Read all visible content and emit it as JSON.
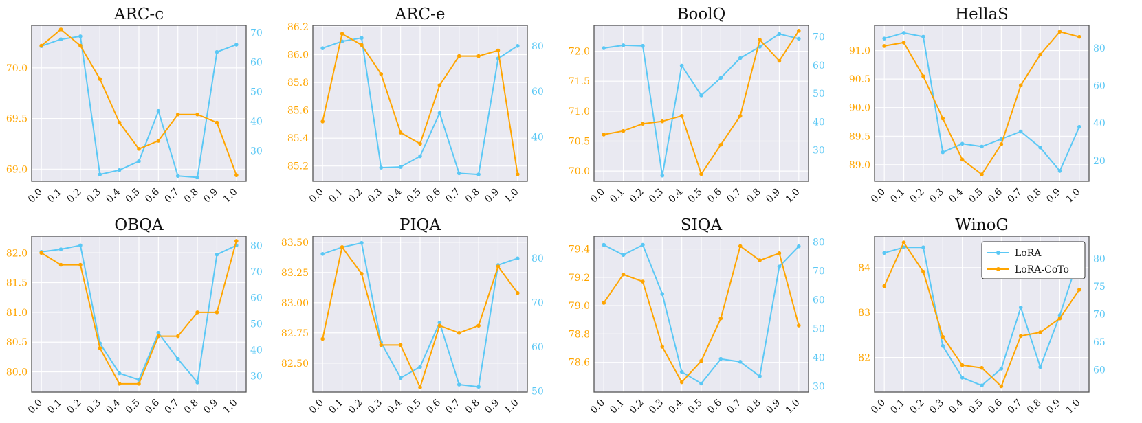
{
  "colors": {
    "lora": "#5BC8F5",
    "coto": "#FFA500",
    "panel_bg": "#E9E9F1",
    "grid": "#FFFFFF",
    "frame": "#555555",
    "text": "#111111"
  },
  "x_ticks": [
    "0.0",
    "0.1",
    "0.2",
    "0.3",
    "0.4",
    "0.5",
    "0.6",
    "0.7",
    "0.8",
    "0.9",
    "1.0"
  ],
  "legend": [
    "LoRA",
    "LoRA-CoTo"
  ],
  "chart_data": [
    {
      "type": "line",
      "title": "ARC-c",
      "x": [
        0.0,
        0.1,
        0.2,
        0.3,
        0.4,
        0.5,
        0.6,
        0.7,
        0.8,
        0.9,
        1.0
      ],
      "left_axis": {
        "series": "LoRA-CoTo",
        "ylim": [
          68.88,
          70.42
        ],
        "ticks": [
          69.0,
          69.5,
          70.0
        ],
        "tick_labels": [
          "69.0",
          "69.5",
          "70.0"
        ]
      },
      "right_axis": {
        "series": "LoRA",
        "ylim": [
          19.7,
          72.5
        ],
        "ticks": [
          30,
          40,
          50,
          60,
          70
        ],
        "tick_labels": [
          "30",
          "40",
          "50",
          "60",
          "70"
        ]
      },
      "series": [
        {
          "name": "LoRA",
          "axis": "right",
          "values": [
            65.5,
            67.8,
            68.8,
            22.0,
            23.5,
            26.5,
            43.5,
            21.5,
            21.0,
            63.5,
            66.0
          ]
        },
        {
          "name": "LoRA-CoTo",
          "axis": "left",
          "values": [
            70.22,
            70.38,
            70.22,
            69.89,
            69.46,
            69.2,
            69.28,
            69.54,
            69.54,
            69.46,
            68.94
          ]
        }
      ]
    },
    {
      "type": "line",
      "title": "ARC-e",
      "x": [
        0.0,
        0.1,
        0.2,
        0.3,
        0.4,
        0.5,
        0.6,
        0.7,
        0.8,
        0.9,
        1.0
      ],
      "left_axis": {
        "series": "LoRA-CoTo",
        "ylim": [
          85.09,
          86.21
        ],
        "ticks": [
          85.2,
          85.4,
          85.6,
          85.8,
          86.0,
          86.2
        ],
        "tick_labels": [
          "85.2",
          "85.4",
          "85.6",
          "85.8",
          "86.0",
          "86.2"
        ]
      },
      "right_axis": {
        "series": "LoRA",
        "ylim": [
          20.5,
          89.0
        ],
        "ticks": [
          40,
          60,
          80
        ],
        "tick_labels": [
          "40",
          "60",
          "80"
        ]
      },
      "series": [
        {
          "name": "LoRA",
          "axis": "right",
          "values": [
            79.0,
            82.0,
            83.5,
            26.5,
            26.8,
            31.5,
            50.5,
            24.0,
            23.5,
            74.5,
            80.0
          ]
        },
        {
          "name": "LoRA-CoTo",
          "axis": "left",
          "values": [
            85.52,
            86.15,
            86.07,
            85.86,
            85.44,
            85.36,
            85.78,
            85.99,
            85.99,
            86.03,
            85.14
          ]
        }
      ]
    },
    {
      "type": "line",
      "title": "BoolQ",
      "x": [
        0.0,
        0.1,
        0.2,
        0.3,
        0.4,
        0.5,
        0.6,
        0.7,
        0.8,
        0.9,
        1.0
      ],
      "left_axis": {
        "series": "LoRA-CoTo",
        "ylim": [
          69.83,
          72.43
        ],
        "ticks": [
          70.0,
          70.5,
          71.0,
          71.5,
          72.0
        ],
        "tick_labels": [
          "70.0",
          "70.5",
          "71.0",
          "71.5",
          "72.0"
        ]
      },
      "right_axis": {
        "series": "LoRA",
        "ylim": [
          19.0,
          74.0
        ],
        "ticks": [
          30,
          40,
          50,
          60,
          70
        ],
        "tick_labels": [
          "30",
          "40",
          "50",
          "60",
          "70"
        ]
      },
      "series": [
        {
          "name": "LoRA",
          "axis": "right",
          "values": [
            66.0,
            67.0,
            66.8,
            21.0,
            59.8,
            49.3,
            55.5,
            62.5,
            66.5,
            71.0,
            69.3
          ]
        },
        {
          "name": "LoRA-CoTo",
          "axis": "left",
          "values": [
            70.61,
            70.67,
            70.79,
            70.83,
            70.92,
            69.95,
            70.44,
            70.92,
            72.19,
            71.84,
            72.34
          ]
        }
      ]
    },
    {
      "type": "line",
      "title": "HellaS",
      "x": [
        0.0,
        0.1,
        0.2,
        0.3,
        0.4,
        0.5,
        0.6,
        0.7,
        0.8,
        0.9,
        1.0
      ],
      "left_axis": {
        "series": "LoRA-CoTo",
        "ylim": [
          88.71,
          91.44
        ],
        "ticks": [
          89.0,
          89.5,
          90.0,
          90.5,
          91.0
        ],
        "tick_labels": [
          "89.0",
          "89.5",
          "90.0",
          "90.5",
          "91.0"
        ]
      },
      "right_axis": {
        "series": "LoRA",
        "ylim": [
          9.0,
          92.0
        ],
        "ticks": [
          20,
          40,
          60,
          80
        ],
        "tick_labels": [
          "20",
          "40",
          "60",
          "80"
        ]
      },
      "series": [
        {
          "name": "LoRA",
          "axis": "right",
          "values": [
            85.0,
            88.0,
            86.0,
            24.5,
            29.0,
            27.5,
            31.5,
            35.5,
            27.0,
            14.5,
            38.0
          ]
        },
        {
          "name": "LoRA-CoTo",
          "axis": "left",
          "values": [
            91.08,
            91.14,
            90.55,
            89.81,
            89.09,
            88.83,
            89.36,
            90.39,
            90.93,
            91.33,
            91.24
          ]
        }
      ]
    },
    {
      "type": "line",
      "title": "OBQA",
      "x": [
        0.0,
        0.1,
        0.2,
        0.3,
        0.4,
        0.5,
        0.6,
        0.7,
        0.8,
        0.9,
        1.0
      ],
      "left_axis": {
        "series": "LoRA-CoTo",
        "ylim": [
          79.66,
          82.28
        ],
        "ticks": [
          80.0,
          80.5,
          81.0,
          81.5,
          82.0
        ],
        "tick_labels": [
          "80.0",
          "80.5",
          "81.0",
          "81.5",
          "82.0"
        ]
      },
      "right_axis": {
        "series": "LoRA",
        "ylim": [
          23.8,
          83.5
        ],
        "ticks": [
          30,
          40,
          50,
          60,
          70,
          80
        ],
        "tick_labels": [
          "30",
          "40",
          "50",
          "60",
          "70",
          "80"
        ]
      },
      "series": [
        {
          "name": "LoRA",
          "axis": "right",
          "values": [
            77.5,
            78.5,
            80.0,
            42.5,
            31.0,
            28.5,
            46.5,
            36.5,
            27.5,
            76.5,
            80.0
          ]
        },
        {
          "name": "LoRA-CoTo",
          "axis": "left",
          "values": [
            82.0,
            81.8,
            81.8,
            80.4,
            79.8,
            79.8,
            80.6,
            80.6,
            81.0,
            81.0,
            82.2
          ]
        }
      ]
    },
    {
      "type": "line",
      "title": "PIQA",
      "x": [
        0.0,
        0.1,
        0.2,
        0.3,
        0.4,
        0.5,
        0.6,
        0.7,
        0.8,
        0.9,
        1.0
      ],
      "left_axis": {
        "series": "LoRA-CoTo",
        "ylim": [
          82.26,
          83.55
        ],
        "ticks": [
          82.5,
          82.75,
          83.0,
          83.25,
          83.5
        ],
        "tick_labels": [
          "82.50",
          "82.75",
          "83.00",
          "83.25",
          "83.50"
        ]
      },
      "right_axis": {
        "series": "LoRA",
        "ylim": [
          49.8,
          85.0
        ],
        "ticks": [
          50,
          60,
          70,
          80
        ],
        "tick_labels": [
          "50",
          "60",
          "70",
          "80"
        ]
      },
      "series": [
        {
          "name": "LoRA",
          "axis": "right",
          "values": [
            81.0,
            82.5,
            83.5,
            61.0,
            53.0,
            55.5,
            65.5,
            51.5,
            51.0,
            78.5,
            80.0
          ]
        },
        {
          "name": "LoRA-CoTo",
          "axis": "left",
          "values": [
            82.7,
            83.46,
            83.24,
            82.65,
            82.65,
            82.3,
            82.81,
            82.75,
            82.81,
            83.3,
            83.08
          ]
        }
      ]
    },
    {
      "type": "line",
      "title": "SIQA",
      "x": [
        0.0,
        0.1,
        0.2,
        0.3,
        0.4,
        0.5,
        0.6,
        0.7,
        0.8,
        0.9,
        1.0
      ],
      "left_axis": {
        "series": "LoRA-CoTo",
        "ylim": [
          78.39,
          79.49
        ],
        "ticks": [
          78.6,
          78.8,
          79.0,
          79.2,
          79.4
        ],
        "tick_labels": [
          "78.6",
          "78.8",
          "79.0",
          "79.2",
          "79.4"
        ]
      },
      "right_axis": {
        "series": "LoRA",
        "ylim": [
          28.0,
          82.0
        ],
        "ticks": [
          30,
          40,
          50,
          60,
          70,
          80
        ],
        "tick_labels": [
          "30",
          "40",
          "50",
          "60",
          "70",
          "80"
        ]
      },
      "series": [
        {
          "name": "LoRA",
          "axis": "right",
          "values": [
            79.0,
            75.5,
            79.0,
            62.0,
            35.0,
            31.0,
            39.5,
            38.5,
            33.5,
            71.5,
            78.5
          ]
        },
        {
          "name": "LoRA-CoTo",
          "axis": "left",
          "values": [
            79.02,
            79.22,
            79.17,
            78.71,
            78.46,
            78.61,
            78.91,
            79.42,
            79.32,
            79.37,
            78.86
          ]
        }
      ]
    },
    {
      "type": "line",
      "title": "WinoG",
      "x": [
        0.0,
        0.1,
        0.2,
        0.3,
        0.4,
        0.5,
        0.6,
        0.7,
        0.8,
        0.9,
        1.0
      ],
      "left_axis": {
        "series": "LoRA-CoTo",
        "ylim": [
          81.23,
          84.7
        ],
        "ticks": [
          82,
          83,
          84
        ],
        "tick_labels": [
          "82",
          "83",
          "84"
        ]
      },
      "right_axis": {
        "series": "LoRA",
        "ylim": [
          56.0,
          84.0
        ],
        "ticks": [
          60,
          65,
          70,
          75,
          80
        ],
        "tick_labels": [
          "60",
          "65",
          "70",
          "75",
          "80"
        ]
      },
      "series": [
        {
          "name": "LoRA",
          "axis": "right",
          "values": [
            81.0,
            82.0,
            82.0,
            64.3,
            58.6,
            57.2,
            60.2,
            71.2,
            60.5,
            69.8,
            80.5
          ]
        },
        {
          "name": "LoRA-CoTo",
          "axis": "left",
          "values": [
            83.59,
            84.56,
            83.91,
            82.46,
            81.83,
            81.77,
            81.36,
            82.48,
            82.56,
            82.87,
            83.51
          ]
        }
      ]
    }
  ]
}
